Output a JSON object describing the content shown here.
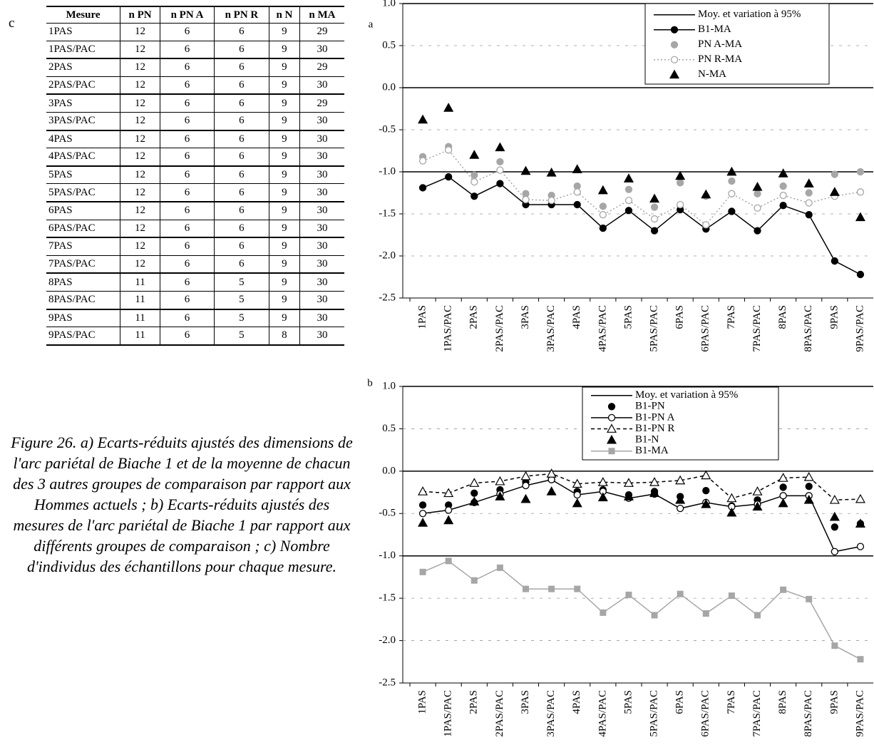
{
  "table": {
    "panel": "c",
    "columns": [
      "Mesure",
      "n PN",
      "n PN A",
      "n PN R",
      "n N",
      "n MA"
    ],
    "rows": [
      [
        "1PAS",
        12,
        6,
        6,
        9,
        29
      ],
      [
        "1PAS/PAC",
        12,
        6,
        6,
        9,
        30
      ],
      [
        "2PAS",
        12,
        6,
        6,
        9,
        29
      ],
      [
        "2PAS/PAC",
        12,
        6,
        6,
        9,
        30
      ],
      [
        "3PAS",
        12,
        6,
        6,
        9,
        29
      ],
      [
        "3PAS/PAC",
        12,
        6,
        6,
        9,
        30
      ],
      [
        "4PAS",
        12,
        6,
        6,
        9,
        30
      ],
      [
        "4PAS/PAC",
        12,
        6,
        6,
        9,
        30
      ],
      [
        "5PAS",
        12,
        6,
        6,
        9,
        30
      ],
      [
        "5PAS/PAC",
        12,
        6,
        6,
        9,
        30
      ],
      [
        "6PAS",
        12,
        6,
        6,
        9,
        30
      ],
      [
        "6PAS/PAC",
        12,
        6,
        6,
        9,
        30
      ],
      [
        "7PAS",
        12,
        6,
        6,
        9,
        30
      ],
      [
        "7PAS/PAC",
        12,
        6,
        6,
        9,
        30
      ],
      [
        "8PAS",
        11,
        6,
        5,
        9,
        30
      ],
      [
        "8PAS/PAC",
        11,
        6,
        5,
        9,
        30
      ],
      [
        "9PAS",
        11,
        6,
        5,
        9,
        30
      ],
      [
        "9PAS/PAC",
        11,
        6,
        5,
        8,
        30
      ]
    ]
  },
  "caption": "Figure 26. a) Ecarts-réduits ajustés des dimensions de l'arc pariétal de Biache 1 et de la moyenne de chacun des 3 autres groupes de comparaison par rapport aux Hommes actuels ; b) Ecarts-réduits ajustés des mesures de l'arc pariétal de Biache 1 par rapport aux différents groupes de comparaison ; c) Nombre d'individus des échantillons pour chaque mesure.",
  "chart_data": [
    {
      "type": "line",
      "panel": "a",
      "legend": "upper right",
      "grid": true,
      "categories": [
        "1PAS",
        "1PAS/PAC",
        "2PAS",
        "2PAS/PAC",
        "3PAS",
        "3PAS/PAC",
        "4PAS",
        "4PAS/PAC",
        "5PAS",
        "5PAS/PAC",
        "6PAS",
        "6PAS/PAC",
        "7PAS",
        "7PAS/PAC",
        "8PAS",
        "8PAS/PAC",
        "9PAS",
        "9PAS/PAC"
      ],
      "ylim": [
        -2.5,
        1.0
      ],
      "yticks": [
        {
          "value": 1.0,
          "label": "1.0"
        },
        0.5,
        {
          "value": 0.0,
          "label": "0.0"
        },
        -0.5,
        {
          "value": -1.0,
          "label": "-1.0"
        },
        -1.5,
        {
          "value": -2.0,
          "label": "-2.0"
        },
        -2.5
      ],
      "reference": {
        "name": "Moy. et variation à 95%",
        "color": "#000000",
        "values": [
          1.0,
          0.0,
          -1.0
        ]
      },
      "series": [
        {
          "name": "B1-MA",
          "color": "#000000",
          "marker": "circle",
          "line": "solid",
          "values": [
            -1.19,
            -1.06,
            -1.29,
            -1.14,
            -1.39,
            -1.39,
            -1.39,
            -1.67,
            -1.46,
            -1.7,
            -1.45,
            -1.68,
            -1.47,
            -1.7,
            -1.4,
            -1.51,
            -2.06,
            -2.22
          ]
        },
        {
          "name": "PN A-MA",
          "color": "#a6a6a6",
          "marker": "circle",
          "line": "none",
          "values": [
            -0.82,
            -0.7,
            -1.04,
            -0.88,
            -1.26,
            -1.28,
            -1.17,
            -1.41,
            -1.21,
            -1.42,
            -1.13,
            -1.29,
            -1.11,
            -1.26,
            -1.17,
            -1.25,
            -1.03,
            -1.0
          ]
        },
        {
          "name": "PN R-MA",
          "color": "#a6a6a6",
          "marker": "circle-open",
          "line": "dotted",
          "values": [
            -0.87,
            -0.74,
            -1.12,
            -0.98,
            -1.33,
            -1.34,
            -1.24,
            -1.51,
            -1.34,
            -1.56,
            -1.39,
            -1.63,
            -1.26,
            -1.43,
            -1.28,
            -1.37,
            -1.29,
            -1.24
          ]
        },
        {
          "name": "N-MA",
          "color": "#000000",
          "marker": "triangle",
          "line": "none",
          "values": [
            -0.38,
            -0.24,
            -0.8,
            -0.71,
            -0.99,
            -1.01,
            -0.97,
            -1.22,
            -1.08,
            -1.32,
            -1.05,
            -1.27,
            -1.0,
            -1.18,
            -1.02,
            -1.14,
            -1.24,
            -1.54
          ]
        }
      ]
    },
    {
      "type": "line",
      "panel": "b",
      "legend": "upper right",
      "grid": true,
      "categories": [
        "1PAS",
        "1PAS/PAC",
        "2PAS",
        "2PAS/PAC",
        "3PAS",
        "3PAS/PAC",
        "4PAS",
        "4PAS/PAC",
        "5PAS",
        "5PAS/PAC",
        "6PAS",
        "6PAS/PAC",
        "7PAS",
        "7PAS/PAC",
        "8PAS",
        "8PAS/PAC",
        "9PAS",
        "9PAS/PAC"
      ],
      "ylim": [
        -2.5,
        1.0
      ],
      "yticks": [
        {
          "value": 1.0,
          "label": "1.0"
        },
        0.5,
        {
          "value": 0.0,
          "label": "0.0"
        },
        -0.5,
        {
          "value": -1.0,
          "label": "-1.0"
        },
        -1.5,
        {
          "value": -2.0,
          "label": "-2.0"
        },
        -2.5
      ],
      "reference": {
        "name": "Moy. et variation à 95%",
        "color": "#000000",
        "values": [
          1.0,
          0.0,
          -1.0
        ]
      },
      "series": [
        {
          "name": "B1-PN",
          "color": "#000000",
          "marker": "circle",
          "line": "none",
          "values": [
            -0.4,
            -0.4,
            -0.26,
            -0.22,
            -0.13,
            -0.1,
            -0.24,
            -0.22,
            -0.28,
            -0.24,
            -0.3,
            -0.23,
            -0.41,
            -0.34,
            -0.19,
            -0.18,
            -0.66,
            -0.62
          ]
        },
        {
          "name": "B1-PN A",
          "color": "#000000",
          "marker": "circle-open",
          "line": "solid",
          "values": [
            -0.5,
            -0.46,
            -0.37,
            -0.27,
            -0.17,
            -0.1,
            -0.28,
            -0.24,
            -0.32,
            -0.27,
            -0.44,
            -0.37,
            -0.42,
            -0.39,
            -0.29,
            -0.29,
            -0.95,
            -0.89
          ]
        },
        {
          "name": "B1-PN R",
          "color": "#000000",
          "marker": "triangle-open",
          "line": "dashed",
          "values": [
            -0.24,
            -0.26,
            -0.14,
            -0.12,
            -0.06,
            -0.03,
            -0.15,
            -0.13,
            -0.14,
            -0.13,
            -0.11,
            -0.05,
            -0.32,
            -0.24,
            -0.08,
            -0.07,
            -0.34,
            -0.33
          ]
        },
        {
          "name": "B1-N",
          "color": "#000000",
          "marker": "triangle",
          "line": "none",
          "values": [
            -0.61,
            -0.58,
            -0.36,
            -0.3,
            -0.33,
            -0.24,
            -0.38,
            -0.31,
            -0.3,
            -0.26,
            -0.34,
            -0.39,
            -0.49,
            -0.42,
            -0.38,
            -0.34,
            -0.54,
            -0.62
          ]
        },
        {
          "name": "B1-MA",
          "color": "#a6a6a6",
          "marker": "square",
          "line": "solid",
          "values": [
            -1.19,
            -1.06,
            -1.29,
            -1.14,
            -1.39,
            -1.39,
            -1.39,
            -1.67,
            -1.46,
            -1.7,
            -1.45,
            -1.68,
            -1.47,
            -1.7,
            -1.4,
            -1.51,
            -2.06,
            -2.22
          ]
        }
      ]
    }
  ]
}
